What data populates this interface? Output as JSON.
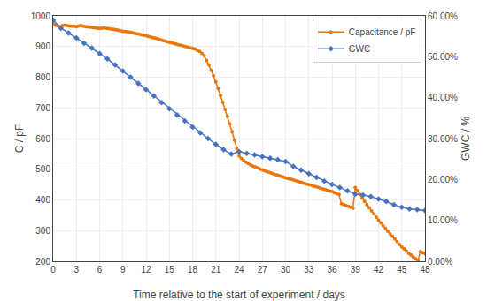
{
  "chart_data": {
    "type": "line",
    "xlabel": "Time relative to the start of experiment / days",
    "ylabel": "C / pF",
    "y2label": "GWC / %",
    "xlim": [
      0,
      48
    ],
    "xticks": [
      0,
      3,
      6,
      9,
      12,
      15,
      18,
      21,
      24,
      27,
      30,
      33,
      36,
      39,
      42,
      45,
      48
    ],
    "ylim": [
      200,
      1000
    ],
    "yticks": [
      200,
      300,
      400,
      500,
      600,
      700,
      800,
      900,
      1000
    ],
    "y2lim": [
      0.0,
      0.6
    ],
    "y2ticks": [
      {
        "value": 0.0,
        "label": "0.00%"
      },
      {
        "value": 0.1,
        "label": "10.00%"
      },
      {
        "value": 0.2,
        "label": "20.00%"
      },
      {
        "value": 0.3,
        "label": "30.00%"
      },
      {
        "value": 0.4,
        "label": "40.00%"
      },
      {
        "value": 0.5,
        "label": "50.00%"
      },
      {
        "value": 0.6,
        "label": "60.00%"
      }
    ],
    "grid": true,
    "legend": "upper right",
    "series": [
      {
        "name": "Capacitance / pF",
        "color": "#E8760A",
        "marker": "circle",
        "x": [
          0.0,
          0.3,
          0.6,
          0.9,
          1.2,
          1.5,
          1.8,
          2.1,
          2.4,
          2.7,
          3.0,
          3.3,
          3.6,
          3.9,
          4.2,
          4.5,
          4.8,
          5.1,
          5.4,
          5.7,
          6.0,
          6.3,
          6.6,
          6.9,
          7.2,
          7.5,
          7.8,
          8.1,
          8.4,
          8.7,
          9.0,
          9.3,
          9.6,
          9.9,
          10.2,
          10.5,
          10.8,
          11.1,
          11.4,
          11.7,
          12.0,
          12.3,
          12.6,
          12.9,
          13.2,
          13.5,
          13.8,
          14.1,
          14.4,
          14.7,
          15.0,
          15.3,
          15.6,
          15.9,
          16.2,
          16.5,
          16.8,
          17.1,
          17.4,
          17.7,
          18.0,
          18.3,
          18.6,
          18.9,
          19.2,
          19.5,
          19.8,
          20.1,
          20.4,
          20.7,
          21.0,
          21.3,
          21.6,
          21.9,
          22.2,
          22.5,
          22.8,
          23.1,
          23.4,
          23.7,
          24.0,
          24.3,
          24.6,
          24.9,
          25.2,
          25.5,
          25.8,
          26.1,
          26.4,
          26.7,
          27.0,
          27.3,
          27.6,
          27.9,
          28.2,
          28.5,
          28.8,
          29.1,
          29.4,
          29.7,
          30.0,
          30.3,
          30.6,
          30.9,
          31.2,
          31.5,
          31.8,
          32.1,
          32.4,
          32.7,
          33.0,
          33.3,
          33.6,
          33.9,
          34.2,
          34.5,
          34.8,
          35.1,
          35.4,
          35.7,
          36.0,
          36.3,
          36.6,
          36.9,
          37.2,
          37.5,
          37.8,
          38.1,
          38.4,
          38.7,
          39.0,
          39.3,
          39.6,
          39.9,
          40.2,
          40.5,
          40.8,
          41.1,
          41.4,
          41.7,
          42.0,
          42.3,
          42.6,
          42.9,
          43.2,
          43.5,
          43.8,
          44.1,
          44.4,
          44.7,
          45.0,
          45.3,
          45.6,
          45.9,
          46.2,
          46.5,
          46.8,
          47.1,
          47.4,
          47.7,
          48.0
        ],
        "values": [
          975,
          970,
          967,
          965,
          968,
          970,
          968,
          967,
          966,
          966,
          965,
          967,
          968,
          966,
          965,
          964,
          963,
          962,
          961,
          960,
          959,
          960,
          961,
          959,
          958,
          957,
          956,
          955,
          953,
          952,
          950,
          949,
          948,
          947,
          945,
          943,
          942,
          940,
          938,
          937,
          935,
          933,
          931,
          929,
          927,
          925,
          922,
          920,
          918,
          916,
          914,
          912,
          910,
          908,
          906,
          904,
          902,
          900,
          898,
          896,
          894,
          892,
          888,
          884,
          878,
          870,
          855,
          840,
          822,
          805,
          785,
          763,
          740,
          718,
          695,
          672,
          648,
          622,
          595,
          568,
          543,
          535,
          528,
          523,
          518,
          514,
          510,
          507,
          504,
          501,
          498,
          495,
          492,
          490,
          487,
          484,
          482,
          480,
          477,
          475,
          472,
          470,
          468,
          466,
          463,
          461,
          459,
          457,
          454,
          452,
          450,
          448,
          445,
          443,
          441,
          438,
          436,
          434,
          431,
          429,
          427,
          424,
          421,
          418,
          388,
          385,
          382,
          379,
          376,
          373,
          440,
          430,
          418,
          406,
          395,
          384,
          374,
          364,
          354,
          344,
          334,
          325,
          316,
          307,
          298,
          289,
          281,
          273,
          264,
          255,
          247,
          240,
          233,
          226,
          220,
          214,
          208,
          203,
          232,
          228,
          225
        ]
      },
      {
        "name": "GWC",
        "color": "#4472C4",
        "marker": "diamond",
        "axis": "y2",
        "x": [
          0,
          1,
          2,
          3,
          4,
          5,
          6,
          7,
          8,
          9,
          10,
          11,
          12,
          13,
          14,
          15,
          16,
          17,
          18,
          19,
          20,
          21,
          22,
          23,
          24,
          25,
          26,
          27,
          28,
          29,
          30,
          31,
          32,
          33,
          34,
          35,
          36,
          37,
          38,
          39,
          40,
          41,
          42,
          43,
          44,
          45,
          46,
          47,
          48
        ],
        "values": [
          0.59,
          0.57,
          0.558,
          0.546,
          0.533,
          0.521,
          0.508,
          0.495,
          0.48,
          0.465,
          0.45,
          0.435,
          0.42,
          0.404,
          0.388,
          0.373,
          0.358,
          0.343,
          0.328,
          0.314,
          0.3,
          0.286,
          0.273,
          0.262,
          0.268,
          0.264,
          0.26,
          0.256,
          0.252,
          0.248,
          0.244,
          0.232,
          0.223,
          0.214,
          0.205,
          0.196,
          0.188,
          0.18,
          0.172,
          0.164,
          0.162,
          0.158,
          0.152,
          0.146,
          0.138,
          0.132,
          0.128,
          0.126,
          0.124
        ]
      }
    ]
  }
}
